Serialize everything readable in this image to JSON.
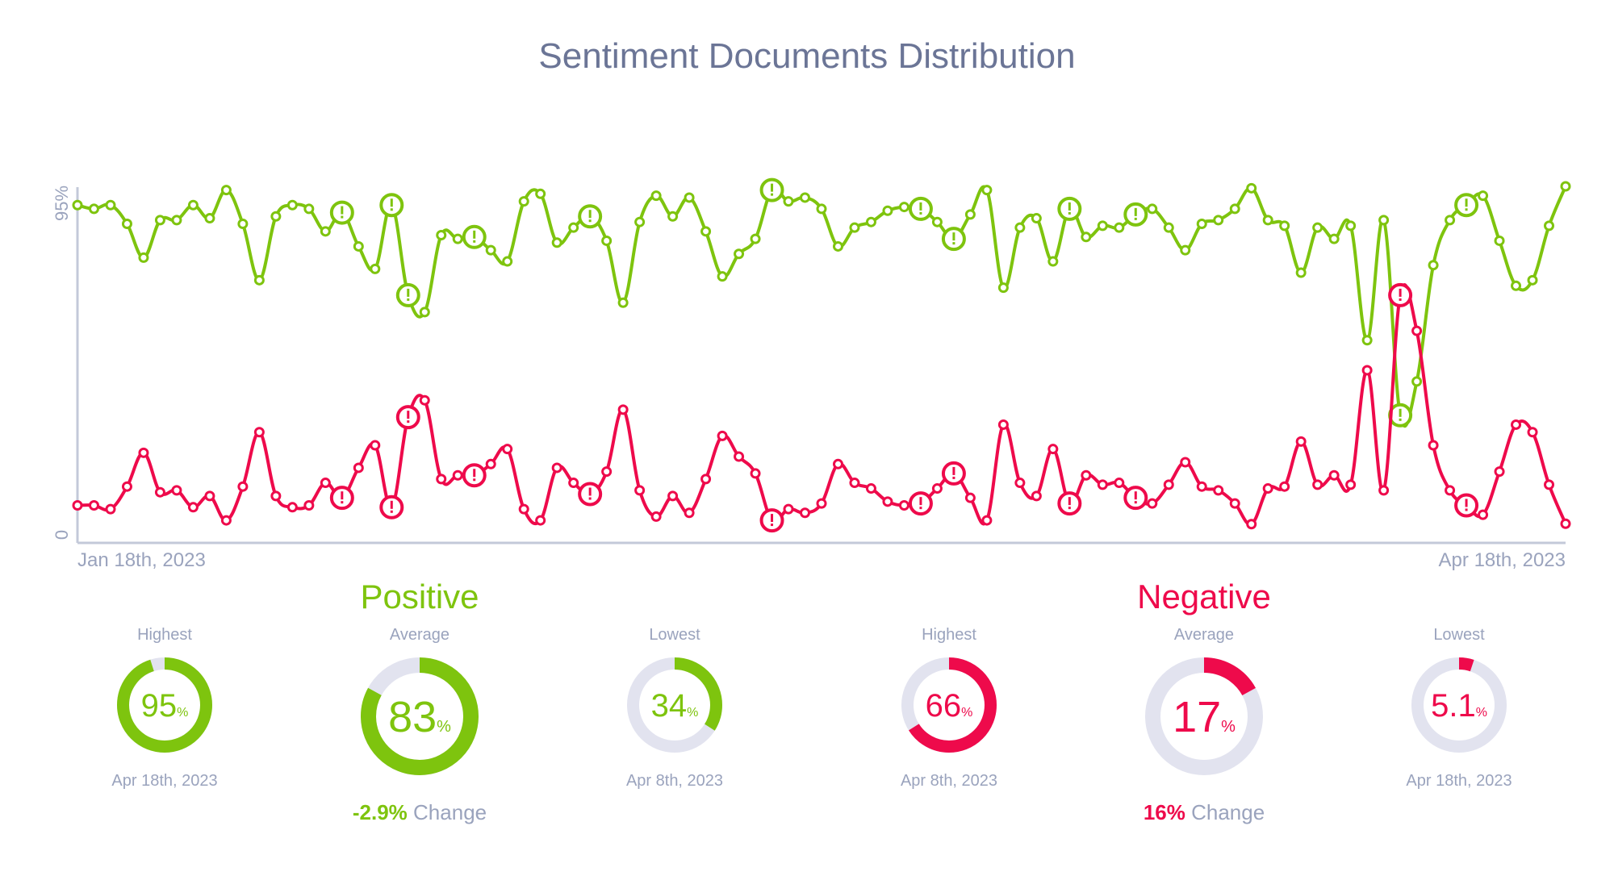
{
  "title": "Sentiment Documents Distribution",
  "colors": {
    "positive": "#7ec40e",
    "negative": "#ee0a4b",
    "track": "#e2e3ef",
    "axis": "#c3c9d9",
    "muted_text": "#9aa3bd",
    "title_text": "#6b7596"
  },
  "chart_data": {
    "type": "line",
    "title": "Sentiment Documents Distribution",
    "x_start_label": "Jan 18th, 2023",
    "x_end_label": "Apr 18th, 2023",
    "y_tick_labels": [
      "0",
      "95%"
    ],
    "ylim": [
      0,
      95
    ],
    "grid": false,
    "series": [
      {
        "key": "positive",
        "color": "#7ec40e",
        "values": [
          90,
          89,
          90,
          85,
          76,
          86,
          86,
          90,
          86.5,
          94,
          85,
          70,
          87,
          90,
          89,
          83,
          88,
          79,
          73,
          90,
          66,
          61.5,
          82,
          81,
          81.5,
          78,
          75,
          91,
          93,
          80,
          84,
          87,
          80.5,
          64,
          85.5,
          92.5,
          87,
          92,
          83,
          71,
          77,
          81,
          94,
          91,
          92,
          89,
          79,
          84,
          85.5,
          88.5,
          89.5,
          89,
          85.5,
          81,
          87.5,
          94,
          68,
          84,
          86.5,
          75,
          89,
          81.5,
          84.5,
          84,
          87.5,
          89,
          84,
          78,
          85,
          86,
          89,
          94.5,
          86,
          84.5,
          72,
          84,
          81,
          84.5,
          54,
          86,
          34,
          43,
          74,
          86,
          90,
          92.5,
          80.5,
          68.5,
          70,
          84.5,
          95
        ]
      },
      {
        "key": "negative",
        "color": "#ee0a4b",
        "values": [
          10,
          10,
          9,
          15,
          24,
          13.5,
          14,
          9.5,
          12.5,
          6,
          15,
          29.5,
          12.5,
          9.5,
          10,
          16,
          12,
          20,
          26,
          9.5,
          33.5,
          38,
          17,
          18,
          18,
          21,
          25,
          9,
          6,
          20,
          16,
          13,
          19,
          35.5,
          14,
          7,
          12.5,
          8,
          17,
          28.5,
          23,
          18.5,
          6,
          9,
          8,
          10.5,
          21,
          16,
          14.5,
          11,
          10,
          10.5,
          14.5,
          18.5,
          12,
          6,
          31.5,
          16,
          12.5,
          25,
          10.5,
          18,
          15.5,
          16,
          12,
          10.5,
          15.5,
          21.5,
          15,
          14,
          10.5,
          5,
          14.5,
          15,
          27,
          15.5,
          18,
          15.5,
          46,
          14,
          66,
          56.5,
          26,
          14,
          10,
          7.5,
          19,
          31.5,
          29.5,
          15.5,
          5.1
        ]
      }
    ],
    "alert_indices": [
      16,
      19,
      20,
      24,
      31,
      42,
      51,
      53,
      60,
      64,
      80,
      84
    ],
    "alert_icon": "exclamation-icon"
  },
  "summary": {
    "positive": {
      "heading": "Positive",
      "change_value": "-2.9%",
      "change_label": "Change",
      "cards": [
        {
          "label": "Highest",
          "value": "95",
          "unit": "%",
          "fraction": 0.95,
          "date": "Apr 18th, 2023"
        },
        {
          "label": "Average",
          "value": "83",
          "unit": "%",
          "fraction": 0.83,
          "date": ""
        },
        {
          "label": "Lowest",
          "value": "34",
          "unit": "%",
          "fraction": 0.34,
          "date": "Apr 8th, 2023"
        }
      ]
    },
    "negative": {
      "heading": "Negative",
      "change_value": "16%",
      "change_label": "Change",
      "cards": [
        {
          "label": "Highest",
          "value": "66",
          "unit": "%",
          "fraction": 0.66,
          "date": "Apr 8th, 2023"
        },
        {
          "label": "Average",
          "value": "17",
          "unit": "%",
          "fraction": 0.17,
          "date": ""
        },
        {
          "label": "Lowest",
          "value": "5.1",
          "unit": "%",
          "fraction": 0.051,
          "date": "Apr 18th, 2023"
        }
      ]
    }
  }
}
